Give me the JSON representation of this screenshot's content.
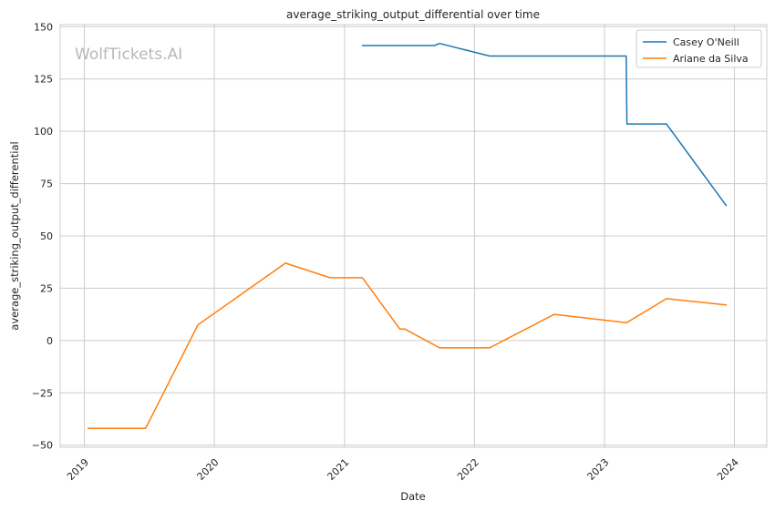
{
  "chart_data": {
    "type": "line",
    "title": "average_striking_output_differential over time",
    "xlabel": "Date",
    "ylabel": "average_striking_output_differential",
    "watermark": "WolfTickets.AI",
    "xlim": [
      "2018-10-25",
      "2024-04-01"
    ],
    "ylim": [
      -51,
      151
    ],
    "x_ticks": [
      "2019-01-01",
      "2020-01-01",
      "2021-01-01",
      "2022-01-01",
      "2023-01-01",
      "2024-01-01"
    ],
    "x_tick_labels": [
      "2019",
      "2020",
      "2021",
      "2022",
      "2023",
      "2024"
    ],
    "y_ticks": [
      -50,
      -25,
      0,
      25,
      50,
      75,
      100,
      125,
      150
    ],
    "y_tick_labels": [
      "−50",
      "−25",
      "0",
      "25",
      "50",
      "75",
      "100",
      "125",
      "150"
    ],
    "grid": true,
    "legend_position": "top-right",
    "series": [
      {
        "name": "Casey O'Neill",
        "color": "#1f77b4",
        "x": [
          "2021-02-20",
          "2021-09-10",
          "2021-09-25",
          "2022-02-12",
          "2023-03-03",
          "2023-03-04",
          "2023-03-05",
          "2023-06-24",
          "2023-12-09"
        ],
        "y": [
          141,
          141,
          142,
          136,
          136,
          120,
          103.5,
          103.5,
          64.5
        ]
      },
      {
        "name": "Ariane da Silva",
        "color": "#ff7f0e",
        "x": [
          "2019-01-12",
          "2019-06-22",
          "2019-11-16",
          "2020-07-19",
          "2020-11-21",
          "2021-02-20",
          "2021-06-05",
          "2021-06-19",
          "2021-09-25",
          "2022-02-12",
          "2022-08-13",
          "2023-03-04",
          "2023-06-24",
          "2023-12-09"
        ],
        "y": [
          -42,
          -42,
          7.5,
          37,
          30,
          30,
          5.5,
          5.5,
          -3.5,
          -3.5,
          12.5,
          8.5,
          20,
          17
        ]
      }
    ]
  }
}
